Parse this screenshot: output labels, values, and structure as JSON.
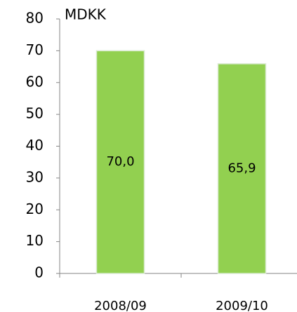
{
  "chart_data": {
    "type": "bar",
    "y_label": "MDKK",
    "categories": [
      "2008/09",
      "2009/10"
    ],
    "values": [
      70.0,
      65.9
    ],
    "value_labels": [
      "70,0",
      "65,9"
    ],
    "color": "#92d050",
    "ylim": [
      0,
      80
    ],
    "yticks": [
      0,
      10,
      20,
      30,
      40,
      50,
      60,
      70,
      80
    ]
  }
}
